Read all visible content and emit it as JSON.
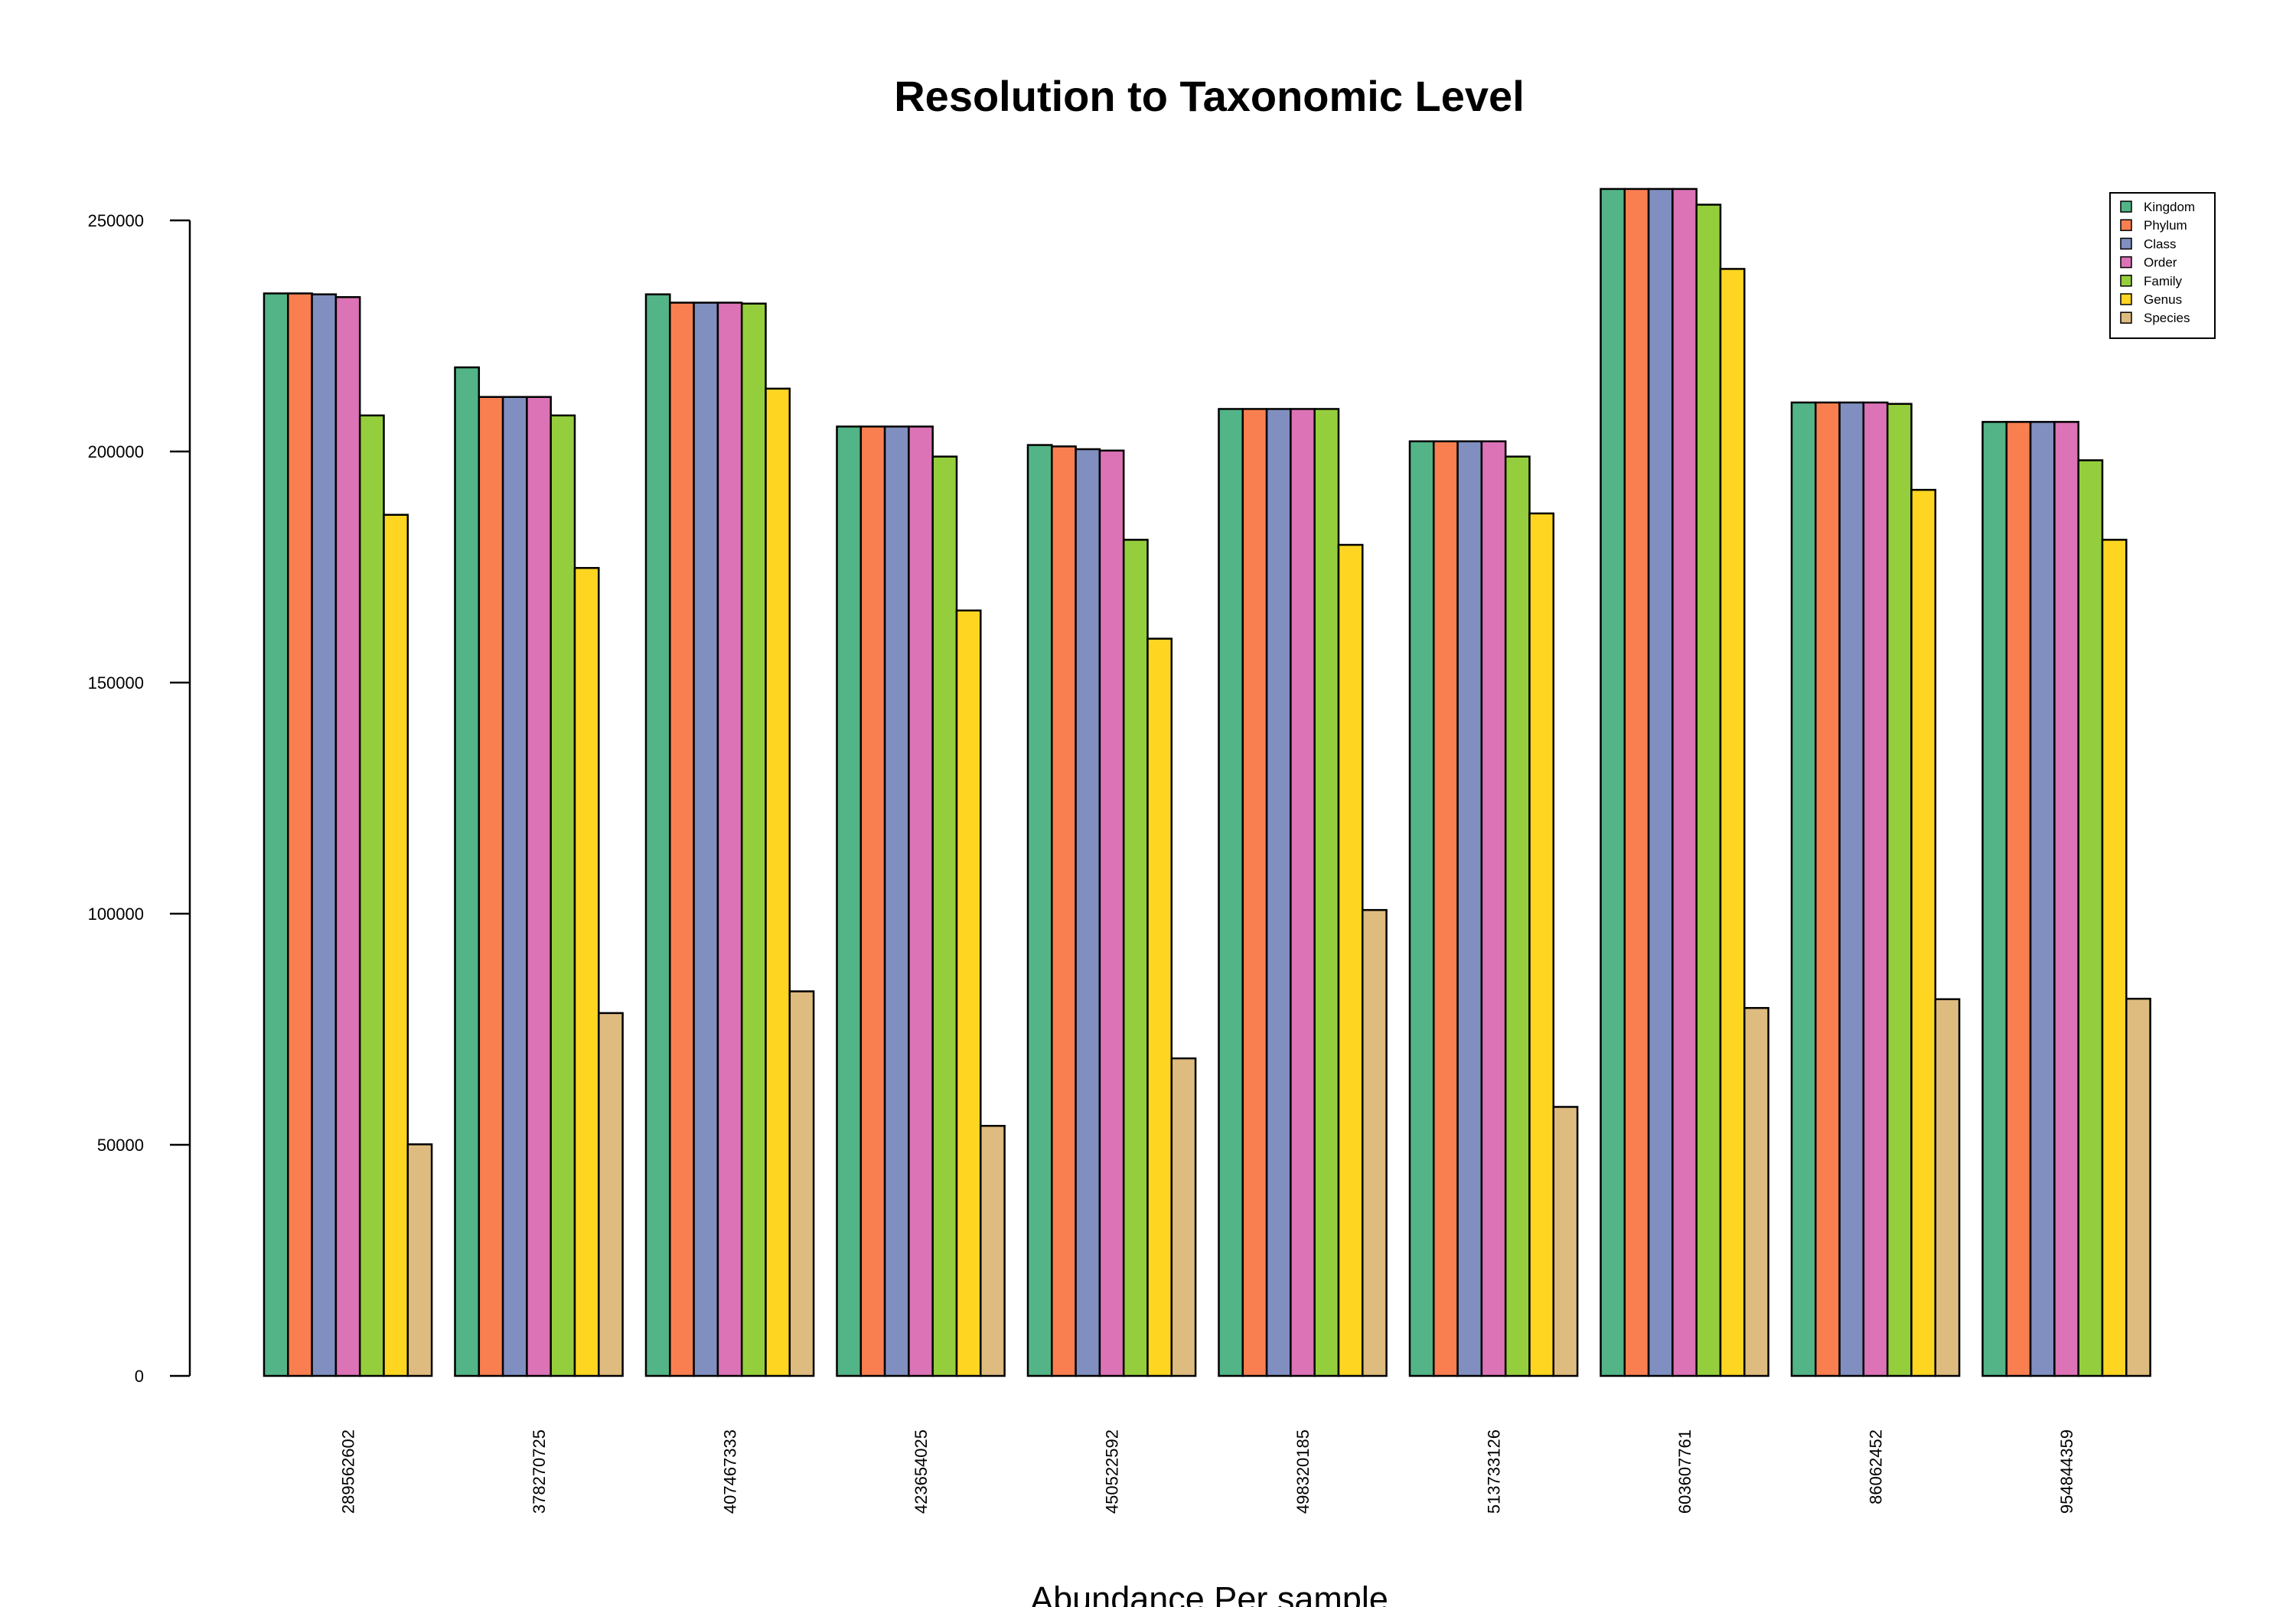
{
  "chart_data": {
    "type": "bar",
    "title": "Resolution to Taxonomic Level",
    "xlabel": "Abundance Per sample",
    "ylabel": "",
    "ylim": [
      0,
      260000
    ],
    "yticks": [
      0,
      50000,
      100000,
      150000,
      200000,
      250000
    ],
    "grid": false,
    "legend": "top-right",
    "categories": [
      "289562602",
      "378270725",
      "407467333",
      "423654025",
      "450522592",
      "498320185",
      "513733126",
      "603607761",
      "86062452",
      "954844359"
    ],
    "series": [
      {
        "name": "Kingdom",
        "color": "#52b487",
        "values": [
          234200,
          218200,
          234000,
          205400,
          201400,
          209200,
          202200,
          256800,
          210600,
          206400
        ]
      },
      {
        "name": "Phylum",
        "color": "#f97f50",
        "values": [
          234200,
          211800,
          232200,
          205400,
          201100,
          209200,
          202200,
          256800,
          210600,
          206400
        ]
      },
      {
        "name": "Class",
        "color": "#808fc0",
        "values": [
          234000,
          211800,
          232200,
          205400,
          200500,
          209200,
          202200,
          256800,
          210600,
          206400
        ]
      },
      {
        "name": "Order",
        "color": "#db73b6",
        "values": [
          233400,
          211800,
          232200,
          205400,
          200200,
          209200,
          202200,
          256800,
          210600,
          206400
        ]
      },
      {
        "name": "Family",
        "color": "#95ce3c",
        "values": [
          207800,
          207800,
          232000,
          198900,
          180900,
          209200,
          198900,
          253400,
          210300,
          198100
        ]
      },
      {
        "name": "Genus",
        "color": "#fed521",
        "values": [
          186300,
          174800,
          213600,
          165600,
          159500,
          179800,
          186600,
          239500,
          191700,
          180900
        ]
      },
      {
        "name": "Species",
        "color": "#debb7f",
        "values": [
          50100,
          78500,
          83200,
          54100,
          68700,
          100800,
          58200,
          79600,
          81500,
          81600
        ]
      }
    ]
  }
}
